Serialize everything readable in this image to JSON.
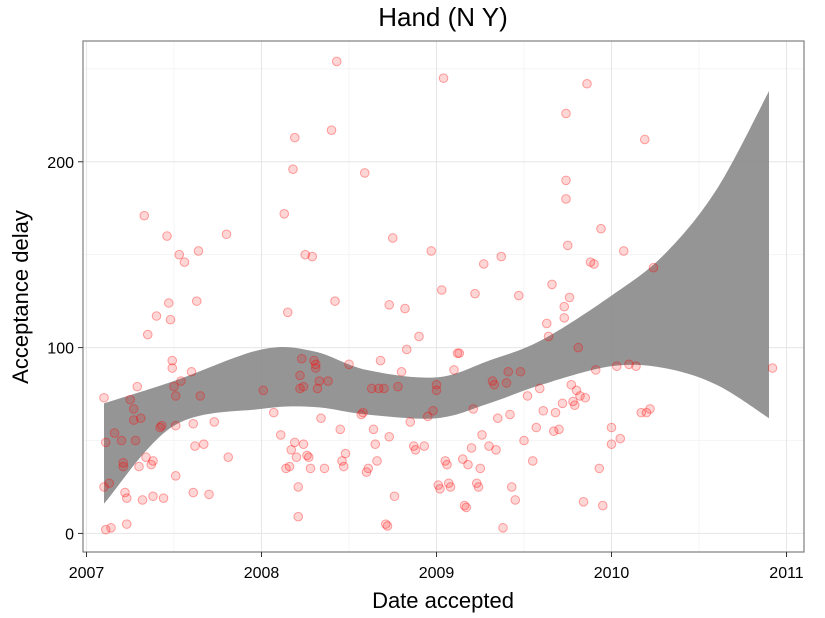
{
  "chart_data": {
    "type": "scatter",
    "title": "Hand (N Y)",
    "xlabel": "Date accepted",
    "ylabel": "Acceptance delay",
    "xlim": [
      2006.98,
      2011.1
    ],
    "ylim": [
      -10,
      265
    ],
    "x_ticks": [
      2007,
      2008,
      2009,
      2010,
      2011
    ],
    "y_ticks": [
      0,
      100,
      200
    ],
    "grid": true,
    "point_color": "#ff0000",
    "ribbon_color": "#8c8c8c",
    "smooth_band": {
      "x": [
        2007.1,
        2007.5,
        2008.0,
        2008.3,
        2008.6,
        2009.0,
        2009.3,
        2009.6,
        2010.0,
        2010.3,
        2010.6,
        2010.9
      ],
      "upper": [
        70,
        82,
        99,
        98,
        88,
        84,
        93,
        104,
        128,
        150,
        185,
        238
      ],
      "lower": [
        16,
        58,
        67,
        68,
        64,
        62,
        70,
        80,
        90,
        89,
        80,
        62
      ]
    },
    "points": [
      [
        2007.1,
        73
      ],
      [
        2007.11,
        49
      ],
      [
        2007.1,
        25
      ],
      [
        2007.13,
        27
      ],
      [
        2007.11,
        2
      ],
      [
        2007.14,
        3
      ],
      [
        2007.16,
        54
      ],
      [
        2007.2,
        50
      ],
      [
        2007.21,
        38
      ],
      [
        2007.21,
        36
      ],
      [
        2007.22,
        22
      ],
      [
        2007.23,
        19
      ],
      [
        2007.23,
        5
      ],
      [
        2007.25,
        72
      ],
      [
        2007.27,
        67
      ],
      [
        2007.27,
        61
      ],
      [
        2007.28,
        50
      ],
      [
        2007.29,
        79
      ],
      [
        2007.3,
        36
      ],
      [
        2007.31,
        62
      ],
      [
        2007.32,
        18
      ],
      [
        2007.33,
        171
      ],
      [
        2007.34,
        41
      ],
      [
        2007.35,
        107
      ],
      [
        2007.37,
        37
      ],
      [
        2007.38,
        39
      ],
      [
        2007.38,
        20
      ],
      [
        2007.4,
        117
      ],
      [
        2007.42,
        57
      ],
      [
        2007.43,
        58
      ],
      [
        2007.44,
        19
      ],
      [
        2007.46,
        160
      ],
      [
        2007.47,
        124
      ],
      [
        2007.48,
        115
      ],
      [
        2007.49,
        93
      ],
      [
        2007.49,
        89
      ],
      [
        2007.5,
        79
      ],
      [
        2007.51,
        74
      ],
      [
        2007.51,
        31
      ],
      [
        2007.51,
        58
      ],
      [
        2007.53,
        150
      ],
      [
        2007.54,
        82
      ],
      [
        2007.56,
        146
      ],
      [
        2007.6,
        87
      ],
      [
        2007.61,
        22
      ],
      [
        2007.61,
        59
      ],
      [
        2007.62,
        47
      ],
      [
        2007.63,
        125
      ],
      [
        2007.64,
        152
      ],
      [
        2007.65,
        74
      ],
      [
        2007.67,
        48
      ],
      [
        2007.7,
        21
      ],
      [
        2007.73,
        60
      ],
      [
        2007.8,
        161
      ],
      [
        2007.81,
        41
      ],
      [
        2008.01,
        77
      ],
      [
        2008.07,
        65
      ],
      [
        2008.11,
        53
      ],
      [
        2008.13,
        172
      ],
      [
        2008.14,
        35
      ],
      [
        2008.15,
        119
      ],
      [
        2008.16,
        36
      ],
      [
        2008.17,
        45
      ],
      [
        2008.18,
        196
      ],
      [
        2008.19,
        49
      ],
      [
        2008.19,
        213
      ],
      [
        2008.2,
        41
      ],
      [
        2008.21,
        25
      ],
      [
        2008.21,
        9
      ],
      [
        2008.22,
        85
      ],
      [
        2008.22,
        78
      ],
      [
        2008.23,
        94
      ],
      [
        2008.24,
        48
      ],
      [
        2008.24,
        79
      ],
      [
        2008.25,
        150
      ],
      [
        2008.26,
        42
      ],
      [
        2008.27,
        41
      ],
      [
        2008.28,
        35
      ],
      [
        2008.29,
        149
      ],
      [
        2008.3,
        93
      ],
      [
        2008.31,
        91
      ],
      [
        2008.31,
        89
      ],
      [
        2008.32,
        78
      ],
      [
        2008.33,
        82
      ],
      [
        2008.34,
        62
      ],
      [
        2008.36,
        35
      ],
      [
        2008.38,
        82
      ],
      [
        2008.4,
        217
      ],
      [
        2008.42,
        125
      ],
      [
        2008.43,
        254
      ],
      [
        2008.45,
        56
      ],
      [
        2008.46,
        39
      ],
      [
        2008.47,
        36
      ],
      [
        2008.48,
        43
      ],
      [
        2008.5,
        91
      ],
      [
        2008.57,
        64
      ],
      [
        2008.58,
        65
      ],
      [
        2008.59,
        194
      ],
      [
        2008.6,
        33
      ],
      [
        2008.61,
        35
      ],
      [
        2008.63,
        78
      ],
      [
        2008.64,
        56
      ],
      [
        2008.65,
        48
      ],
      [
        2008.66,
        39
      ],
      [
        2008.67,
        78
      ],
      [
        2008.68,
        93
      ],
      [
        2008.7,
        78
      ],
      [
        2008.71,
        5
      ],
      [
        2008.72,
        4
      ],
      [
        2008.73,
        123
      ],
      [
        2008.73,
        52
      ],
      [
        2008.75,
        159
      ],
      [
        2008.76,
        20
      ],
      [
        2008.78,
        79
      ],
      [
        2008.8,
        87
      ],
      [
        2008.82,
        121
      ],
      [
        2008.83,
        99
      ],
      [
        2008.85,
        60
      ],
      [
        2008.87,
        47
      ],
      [
        2008.88,
        45
      ],
      [
        2008.9,
        106
      ],
      [
        2008.93,
        47
      ],
      [
        2008.95,
        63
      ],
      [
        2008.97,
        152
      ],
      [
        2008.98,
        66
      ],
      [
        2009.0,
        80
      ],
      [
        2009.0,
        77
      ],
      [
        2009.01,
        26
      ],
      [
        2009.02,
        24
      ],
      [
        2009.03,
        131
      ],
      [
        2009.04,
        245
      ],
      [
        2009.05,
        39
      ],
      [
        2009.06,
        37
      ],
      [
        2009.07,
        27
      ],
      [
        2009.08,
        25
      ],
      [
        2009.1,
        88
      ],
      [
        2009.12,
        97
      ],
      [
        2009.13,
        97
      ],
      [
        2009.15,
        40
      ],
      [
        2009.16,
        15
      ],
      [
        2009.17,
        14
      ],
      [
        2009.18,
        37
      ],
      [
        2009.2,
        46
      ],
      [
        2009.21,
        67
      ],
      [
        2009.22,
        129
      ],
      [
        2009.23,
        27
      ],
      [
        2009.24,
        25
      ],
      [
        2009.25,
        35
      ],
      [
        2009.26,
        53
      ],
      [
        2009.27,
        145
      ],
      [
        2009.3,
        47
      ],
      [
        2009.32,
        82
      ],
      [
        2009.33,
        80
      ],
      [
        2009.34,
        45
      ],
      [
        2009.35,
        62
      ],
      [
        2009.37,
        149
      ],
      [
        2009.38,
        3
      ],
      [
        2009.4,
        81
      ],
      [
        2009.41,
        87
      ],
      [
        2009.42,
        64
      ],
      [
        2009.43,
        25
      ],
      [
        2009.45,
        18
      ],
      [
        2009.47,
        128
      ],
      [
        2009.48,
        87
      ],
      [
        2009.5,
        50
      ],
      [
        2009.52,
        74
      ],
      [
        2009.55,
        39
      ],
      [
        2009.57,
        57
      ],
      [
        2009.59,
        78
      ],
      [
        2009.61,
        66
      ],
      [
        2009.63,
        113
      ],
      [
        2009.64,
        106
      ],
      [
        2009.66,
        134
      ],
      [
        2009.67,
        55
      ],
      [
        2009.68,
        65
      ],
      [
        2009.7,
        56
      ],
      [
        2009.72,
        70
      ],
      [
        2009.73,
        116
      ],
      [
        2009.73,
        122
      ],
      [
        2009.74,
        226
      ],
      [
        2009.74,
        190
      ],
      [
        2009.74,
        180
      ],
      [
        2009.75,
        155
      ],
      [
        2009.76,
        127
      ],
      [
        2009.77,
        80
      ],
      [
        2009.78,
        71
      ],
      [
        2009.79,
        69
      ],
      [
        2009.8,
        77
      ],
      [
        2009.81,
        100
      ],
      [
        2009.82,
        74
      ],
      [
        2009.84,
        17
      ],
      [
        2009.85,
        73
      ],
      [
        2009.86,
        242
      ],
      [
        2009.88,
        146
      ],
      [
        2009.9,
        145
      ],
      [
        2009.91,
        88
      ],
      [
        2009.93,
        35
      ],
      [
        2009.94,
        164
      ],
      [
        2009.95,
        15
      ],
      [
        2010.0,
        57
      ],
      [
        2010.0,
        48
      ],
      [
        2010.03,
        90
      ],
      [
        2010.05,
        51
      ],
      [
        2010.07,
        152
      ],
      [
        2010.1,
        91
      ],
      [
        2010.14,
        90
      ],
      [
        2010.17,
        65
      ],
      [
        2010.19,
        212
      ],
      [
        2010.2,
        65
      ],
      [
        2010.22,
        67
      ],
      [
        2010.24,
        143
      ],
      [
        2010.92,
        89
      ]
    ]
  }
}
